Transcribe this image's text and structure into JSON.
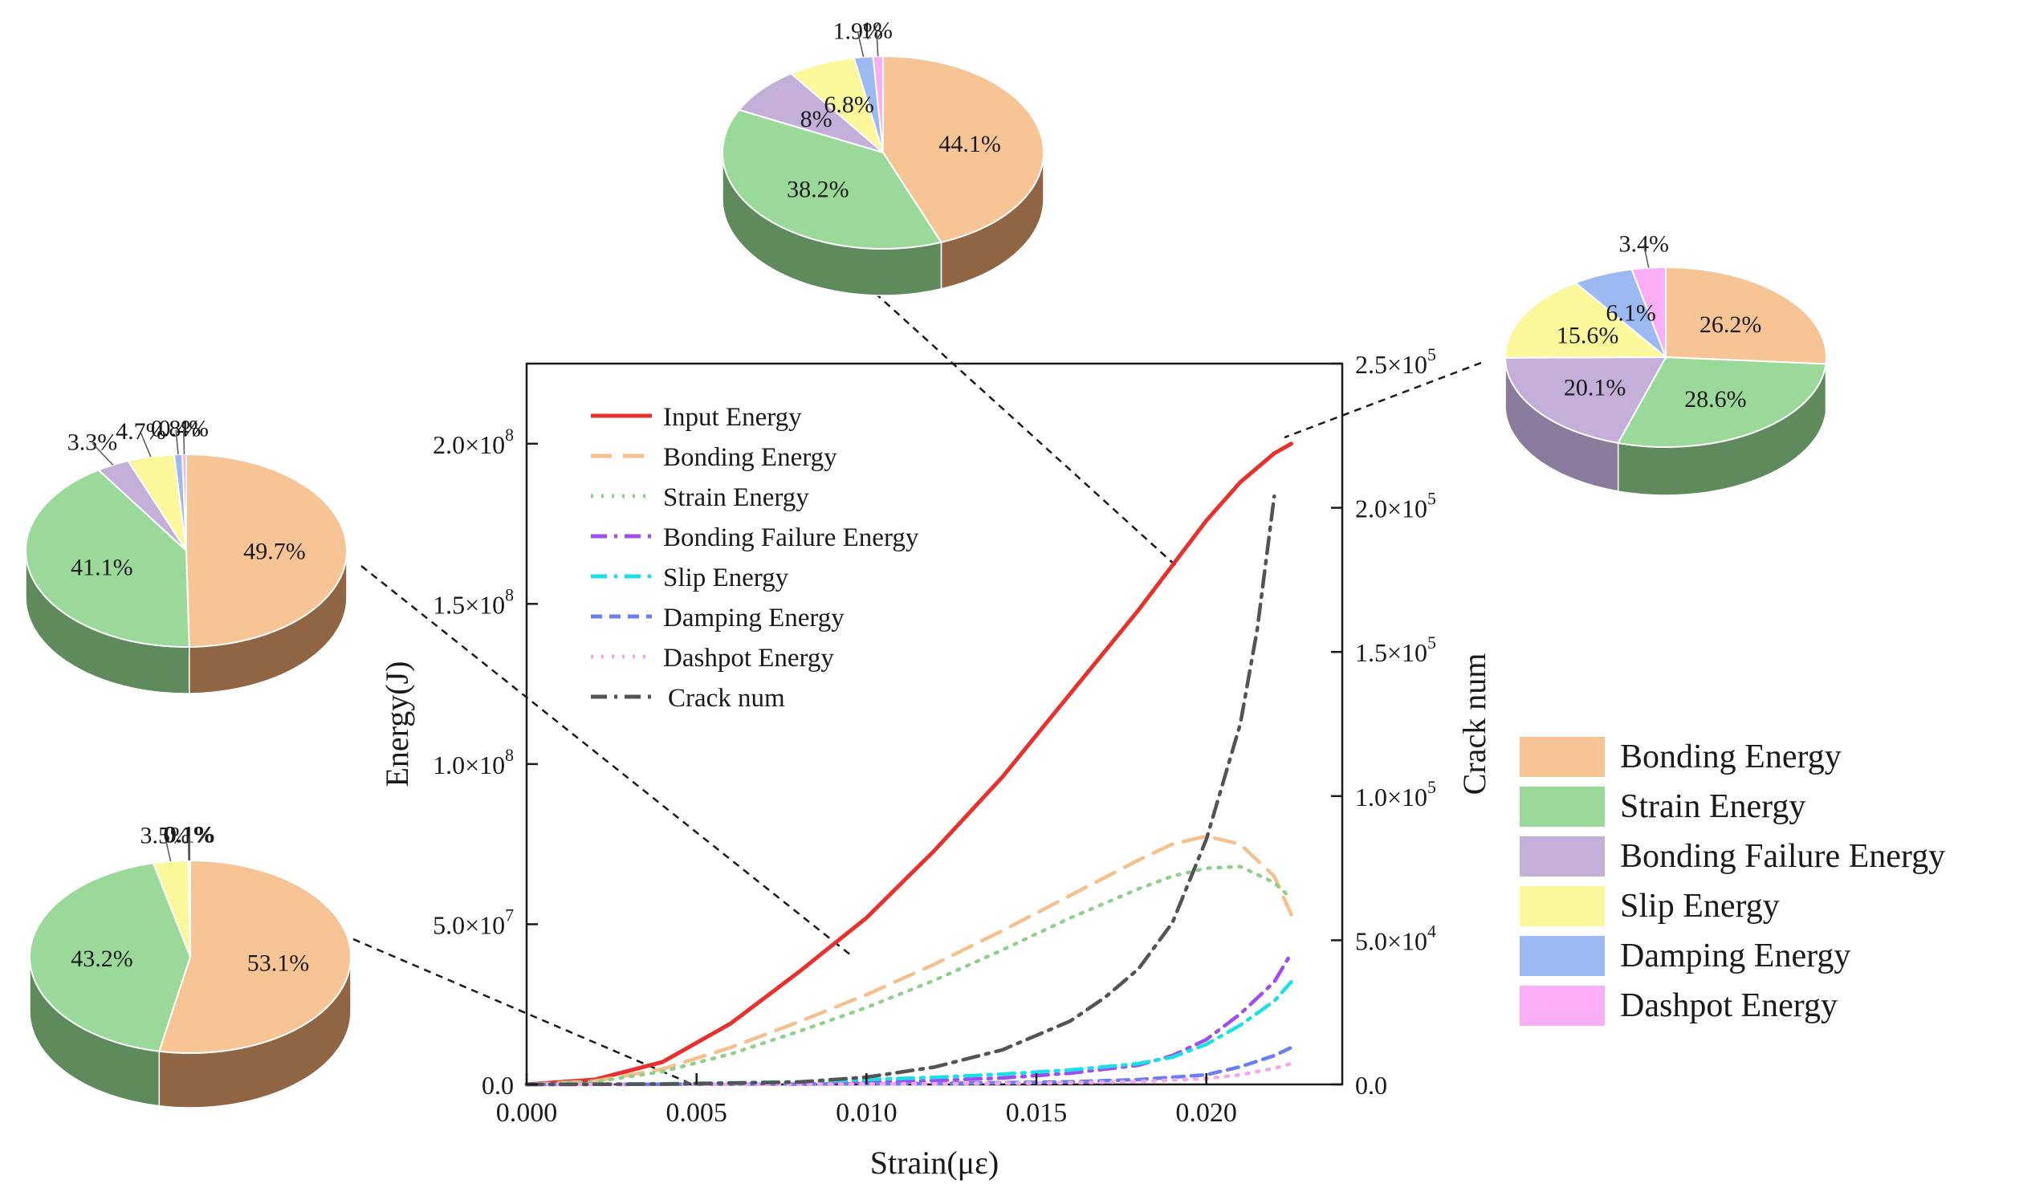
{
  "chart_data": [
    {
      "type": "line",
      "xlabel": "Strain(με)",
      "ylabel": "Energy(J)",
      "y2label": "Crack num",
      "xlim": [
        0,
        0.024
      ],
      "ylim": [
        0,
        225000000.0
      ],
      "y2lim": [
        0,
        250000.0
      ],
      "xticks": [
        "0.000",
        "0.005",
        "0.010",
        "0.015",
        "0.020"
      ],
      "yticks": [
        {
          "m": "0.0",
          "e": ""
        },
        {
          "m": "5.0×10",
          "e": "7"
        },
        {
          "m": "1.0×10",
          "e": "8"
        },
        {
          "m": "1.5×10",
          "e": "8"
        },
        {
          "m": "2.0×10",
          "e": "8"
        }
      ],
      "y2ticks": [
        {
          "m": "0.0",
          "e": ""
        },
        {
          "m": "5.0×10",
          "e": "4"
        },
        {
          "m": "1.0×10",
          "e": "5"
        },
        {
          "m": "1.5×10",
          "e": "5"
        },
        {
          "m": "2.0×10",
          "e": "5"
        },
        {
          "m": "2.5×10",
          "e": "5"
        }
      ],
      "legend_position": "top-left",
      "grid": false,
      "series": [
        {
          "name": "Input Energy",
          "color": "#e8312d",
          "style": "solid",
          "axis": "left",
          "x": [
            0,
            0.002,
            0.004,
            0.006,
            0.008,
            0.01,
            0.012,
            0.014,
            0.016,
            0.018,
            0.02,
            0.021,
            0.022,
            0.0225
          ],
          "y": [
            0,
            1500000.0,
            7000000.0,
            19000000.0,
            35000000.0,
            52000000.0,
            73000000.0,
            96000000.0,
            122000000.0,
            148000000.0,
            176000000.0,
            188000000.0,
            197000000.0,
            200000000.0
          ]
        },
        {
          "name": "Bonding Energy",
          "color": "#f4c08d",
          "style": "longdash",
          "axis": "left",
          "x": [
            0,
            0.002,
            0.004,
            0.006,
            0.008,
            0.01,
            0.012,
            0.014,
            0.016,
            0.018,
            0.019,
            0.02,
            0.021,
            0.022,
            0.0225
          ],
          "y": [
            0,
            1000000.0,
            4800000.0,
            11500000.0,
            19500000.0,
            28000000.0,
            37500000.0,
            48000000.0,
            59000000.0,
            70000000.0,
            75000000.0,
            77500000.0,
            75000000.0,
            65000000.0,
            53000000.0
          ]
        },
        {
          "name": "Strain Energy",
          "color": "#8fd18c",
          "style": "dot",
          "axis": "left",
          "x": [
            0,
            0.002,
            0.004,
            0.006,
            0.008,
            0.01,
            0.012,
            0.014,
            0.016,
            0.018,
            0.019,
            0.02,
            0.021,
            0.022,
            0.0225
          ],
          "y": [
            0,
            800000.0,
            4000000.0,
            9500000.0,
            16500000.0,
            24000000.0,
            32500000.0,
            42000000.0,
            52000000.0,
            61000000.0,
            65000000.0,
            67500000.0,
            68000000.0,
            63000000.0,
            58000000.0
          ]
        },
        {
          "name": "Bonding Failure Energy",
          "color": "#a24cf0",
          "style": "dashdot",
          "axis": "left",
          "x": [
            0,
            0.004,
            0.008,
            0.012,
            0.014,
            0.016,
            0.018,
            0.019,
            0.02,
            0.021,
            0.022,
            0.0225
          ],
          "y": [
            0,
            100000.0,
            400000.0,
            1200000.0,
            2000000.0,
            3500000.0,
            6000000.0,
            9000000.0,
            14000000.0,
            22000000.0,
            32000000.0,
            41000000.0
          ]
        },
        {
          "name": "Slip Energy",
          "color": "#19e0e6",
          "style": "dashdot",
          "axis": "left",
          "x": [
            0,
            0.004,
            0.008,
            0.012,
            0.014,
            0.016,
            0.018,
            0.019,
            0.02,
            0.021,
            0.022,
            0.0225
          ],
          "y": [
            0,
            200000.0,
            800000.0,
            2200000.0,
            3200000.0,
            4500000.0,
            6500000.0,
            8500000.0,
            12500000.0,
            18500000.0,
            26000000.0,
            32000000.0
          ]
        },
        {
          "name": "Damping Energy",
          "color": "#6c7ff0",
          "style": "dash",
          "axis": "left",
          "x": [
            0,
            0.008,
            0.012,
            0.016,
            0.018,
            0.02,
            0.021,
            0.022,
            0.0225
          ],
          "y": [
            0,
            100000.0,
            300000.0,
            800000.0,
            1500000.0,
            3000000.0,
            5500000.0,
            9000000.0,
            11500000.0
          ]
        },
        {
          "name": "Dashpot Energy",
          "color": "#f5a6ee",
          "style": "dot",
          "axis": "left",
          "x": [
            0,
            0.008,
            0.012,
            0.016,
            0.018,
            0.02,
            0.021,
            0.022,
            0.0225
          ],
          "y": [
            0,
            50000.0,
            200000.0,
            500000.0,
            900000.0,
            1800000.0,
            3000000.0,
            5000000.0,
            6500000.0
          ]
        },
        {
          "name": "Crack num",
          "color": "#545454",
          "style": "dashdot",
          "axis": "right",
          "x": [
            0,
            0.004,
            0.008,
            0.01,
            0.012,
            0.014,
            0.016,
            0.017,
            0.018,
            0.019,
            0.02,
            0.021,
            0.0215,
            0.022
          ],
          "y": [
            0,
            100,
            800,
            2500,
            6000,
            12000,
            22000,
            30000,
            40000,
            56000,
            85000,
            125000,
            158000,
            204000
          ]
        }
      ]
    },
    {
      "type": "pie",
      "labels": [
        "Bonding Energy",
        "Strain Energy",
        "Bonding Failure Energy",
        "Slip Energy",
        "Damping Energy",
        "Dashpot Energy"
      ],
      "values": [
        53.1,
        43.2,
        0,
        3.5,
        0.1,
        0.1
      ],
      "value_labels": [
        "53.1%",
        "43.2%",
        "",
        "3.5%",
        "0.1%",
        "0.1%"
      ],
      "annotation": "linked to strain ≈ 0.0045"
    },
    {
      "type": "pie",
      "labels": [
        "Bonding Energy",
        "Strain Energy",
        "Bonding Failure Energy",
        "Slip Energy",
        "Damping Energy",
        "Dashpot Energy"
      ],
      "values": [
        49.7,
        41.1,
        3.3,
        4.7,
        0.8,
        0.4
      ],
      "value_labels": [
        "49.7%",
        "41.1%",
        "3.3%",
        "4.7%",
        "0.8%",
        "0.4%"
      ],
      "annotation": "linked to strain ≈ 0.0095"
    },
    {
      "type": "pie",
      "labels": [
        "Bonding Energy",
        "Strain Energy",
        "Bonding Failure Energy",
        "Slip Energy",
        "Damping Energy",
        "Dashpot Energy"
      ],
      "values": [
        44.1,
        38.2,
        8,
        6.8,
        1.9,
        1
      ],
      "value_labels": [
        "44.1%",
        "38.2%",
        "8%",
        "6.8%",
        "1.9%",
        "1%"
      ],
      "annotation": "linked to strain ≈ 0.019"
    },
    {
      "type": "pie",
      "labels": [
        "Bonding Energy",
        "Strain Energy",
        "Bonding Failure Energy",
        "Slip Energy",
        "Damping Energy",
        "Dashpot Energy"
      ],
      "values": [
        26.2,
        28.6,
        20.1,
        15.6,
        6.1,
        3.4
      ],
      "value_labels": [
        "26.2%",
        "28.6%",
        "20.1%",
        "15.6%",
        "6.1%",
        "3.4%"
      ],
      "annotation": "linked to strain ≈ 0.0225"
    }
  ],
  "pie_legend": [
    {
      "label": "Bonding Energy",
      "color": "#f7c595"
    },
    {
      "label": "Strain Energy",
      "color": "#9bd99a"
    },
    {
      "label": "Bonding Failure Energy",
      "color": "#c3afd8"
    },
    {
      "label": "Slip Energy",
      "color": "#faf89b"
    },
    {
      "label": "Damping Energy",
      "color": "#9cb9f1"
    },
    {
      "label": "Dashpot Energy",
      "color": "#f9aef5"
    }
  ],
  "colors": {
    "axis": "#1a1a1a",
    "pie_side": [
      "#8f6543",
      "#5e8a5c",
      "#8a7a9c",
      "#b8b560",
      "#6a86b5",
      "#b57fb2"
    ],
    "pie_fill": [
      "#f7c595",
      "#9bd99a",
      "#c3afd8",
      "#faf89b",
      "#9cb9f1",
      "#f9aef5"
    ]
  }
}
